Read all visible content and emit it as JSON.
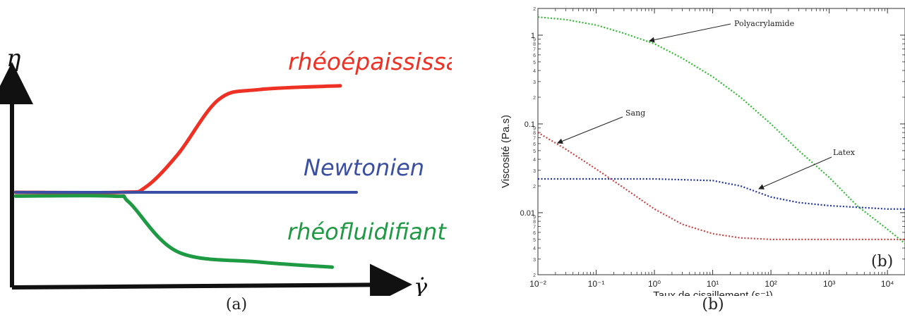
{
  "chart_data": [
    {
      "type": "line",
      "ylabel": "η",
      "xlabel": "γ̇",
      "series": [
        {
          "name": "rhéoépaississant",
          "color": "#ee3124",
          "x": [
            0,
            6.5,
            8,
            10,
            12.5,
            15,
            20
          ],
          "y": [
            0,
            0,
            0.4,
            3,
            7.3,
            8.1,
            8.4
          ]
        },
        {
          "name": "Newtonien",
          "color": "#3a4fa3",
          "x": [
            0,
            21
          ],
          "y": [
            0,
            0
          ]
        },
        {
          "name": "rhéofluidifiant",
          "color": "#1e9a44",
          "x": [
            0,
            6,
            7,
            10,
            15,
            19.5
          ],
          "y": [
            -0.3,
            -0.3,
            -0.8,
            -4.7,
            -5.5,
            -5.9
          ]
        }
      ]
    },
    {
      "type": "line",
      "xlabel": "Taux de cisaillement (s⁻¹)",
      "ylabel": "Viscosité (Pa.s)",
      "xscale": "log",
      "yscale": "log",
      "xlim": [
        0.01,
        20000
      ],
      "ylim": [
        0.002,
        2
      ],
      "x_ticks": [
        "10⁻²",
        "10⁻¹",
        "10⁰",
        "10¹",
        "10²",
        "10³",
        "10⁴"
      ],
      "y_ticks": [
        "0.01",
        "0.1",
        "1"
      ],
      "series": [
        {
          "name": "Polyacrylamide",
          "color": "#33bb33",
          "x": [
            0.01,
            0.03,
            0.1,
            0.3,
            1,
            3,
            10,
            30,
            100,
            300,
            1000,
            3000,
            10000,
            20000
          ],
          "y": [
            1.6,
            1.5,
            1.3,
            1.05,
            0.8,
            0.55,
            0.34,
            0.2,
            0.1,
            0.05,
            0.025,
            0.012,
            0.0065,
            0.0045
          ]
        },
        {
          "name": "Latex",
          "color": "#2233aa",
          "x": [
            0.01,
            0.1,
            1,
            10,
            30,
            100,
            300,
            1000,
            10000,
            20000
          ],
          "y": [
            0.024,
            0.024,
            0.024,
            0.023,
            0.02,
            0.015,
            0.013,
            0.012,
            0.011,
            0.011
          ]
        },
        {
          "name": "Sang",
          "color": "#cc4444",
          "x": [
            0.01,
            0.03,
            0.1,
            0.3,
            1,
            3,
            10,
            30,
            100,
            1000,
            20000
          ],
          "y": [
            0.08,
            0.052,
            0.031,
            0.019,
            0.011,
            0.0074,
            0.0058,
            0.0052,
            0.005,
            0.005,
            0.005
          ]
        }
      ],
      "annotations": [
        "Polyacrylamide",
        "Sang",
        "Latex"
      ],
      "panel_label": "(b)"
    }
  ],
  "captions": {
    "a": "(a)",
    "b": "(b)"
  }
}
